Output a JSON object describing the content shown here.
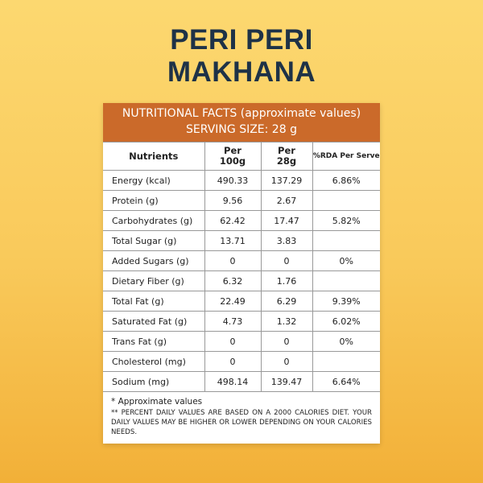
{
  "title": {
    "line1": "PERI PERI",
    "line2": "MAKHANA"
  },
  "facts": {
    "heading": "NUTRITIONAL FACTS (approximate values)",
    "serving": "SERVING SIZE: 28 g"
  },
  "columns": [
    "Nutrients",
    "Per 100g",
    "Per 28g",
    "%RDA Per Serve"
  ],
  "rows": [
    {
      "name": "Energy (kcal)",
      "per100": "490.33",
      "per28": "137.29",
      "rda": "6.86%"
    },
    {
      "name": "Protein (g)",
      "per100": "9.56",
      "per28": "2.67",
      "rda": ""
    },
    {
      "name": "Carbohydrates (g)",
      "per100": "62.42",
      "per28": "17.47",
      "rda": "5.82%"
    },
    {
      "name": "Total Sugar (g)",
      "per100": "13.71",
      "per28": "3.83",
      "rda": ""
    },
    {
      "name": "Added Sugars (g)",
      "per100": "0",
      "per28": "0",
      "rda": "0%"
    },
    {
      "name": "Dietary Fiber (g)",
      "per100": "6.32",
      "per28": "1.76",
      "rda": ""
    },
    {
      "name": "Total Fat (g)",
      "per100": "22.49",
      "per28": "6.29",
      "rda": "9.39%"
    },
    {
      "name": "Saturated Fat (g)",
      "per100": "4.73",
      "per28": "1.32",
      "rda": "6.02%"
    },
    {
      "name": "Trans Fat (g)",
      "per100": "0",
      "per28": "0",
      "rda": "0%"
    },
    {
      "name": "Cholesterol (mg)",
      "per100": "0",
      "per28": "0",
      "rda": ""
    },
    {
      "name": "Sodium (mg)",
      "per100": "498.14",
      "per28": "139.47",
      "rda": "6.64%"
    }
  ],
  "footnotes": {
    "approx": "* Approximate values",
    "daily": "** Percent daily values are based on a 2000 calories diet. Your daily values may be higher or lower depending on your calories needs."
  },
  "colors": {
    "header": "#cb6a2a",
    "title": "#1e3247"
  }
}
